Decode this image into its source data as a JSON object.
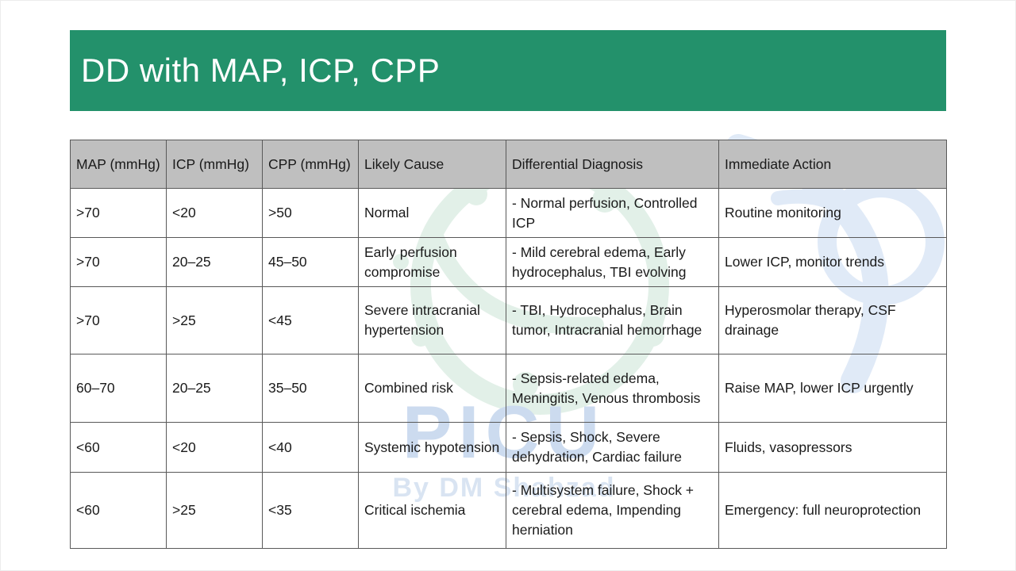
{
  "slide": {
    "title": "DD with MAP, ICP, CPP",
    "accent_color": "#23916B",
    "table_header_bg": "#BFBFBF",
    "border_color": "#595959"
  },
  "watermark": {
    "line1": "PICU",
    "line2": "By DM Shahzad",
    "logo": "stethoscope-doodle-icon",
    "blue_color": "#ccdbef",
    "green_color": "#e2f0e8"
  },
  "table": {
    "headers": [
      "MAP (mmHg)",
      "ICP (mmHg)",
      "CPP (mmHg)",
      "Likely Cause",
      "Differential Diagnosis",
      "Immediate Action"
    ],
    "rows": [
      [
        ">70",
        "<20",
        ">50",
        "Normal",
        "- Normal perfusion, Controlled ICP",
        "Routine monitoring"
      ],
      [
        ">70",
        "20–25",
        "45–50",
        "Early perfusion compromise",
        "- Mild cerebral edema, Early hydrocephalus, TBI evolving",
        "Lower ICP, monitor trends"
      ],
      [
        ">70",
        ">25",
        "<45",
        "Severe intracranial hypertension",
        "- TBI, Hydrocephalus, Brain tumor, Intracranial hemorrhage",
        "Hyperosmolar therapy, CSF drainage"
      ],
      [
        "60–70",
        "20–25",
        "35–50",
        "Combined risk",
        "- Sepsis-related edema, Meningitis, Venous thrombosis",
        "Raise MAP, lower ICP urgently"
      ],
      [
        "<60",
        "<20",
        "<40",
        "Systemic hypotension",
        "- Sepsis, Shock, Severe dehydration, Cardiac failure",
        "Fluids, vasopressors"
      ],
      [
        "<60",
        ">25",
        "<35",
        "Critical ischemia",
        "- Multisystem failure, Shock + cerebral edema, Impending herniation",
        "Emergency: full neuroprotection"
      ]
    ]
  }
}
